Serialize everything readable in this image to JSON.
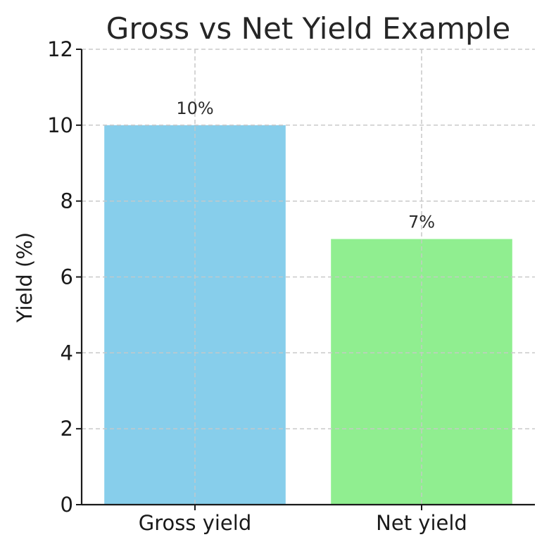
{
  "chart_data": {
    "type": "bar",
    "title": "Gross vs Net Yield Example",
    "xlabel": "",
    "ylabel": "Yield (%)",
    "categories": [
      "Gross yield",
      "Net yield"
    ],
    "values": [
      10,
      7
    ],
    "data_labels": [
      "10%",
      "7%"
    ],
    "colors": [
      "#87CEEB",
      "#90EE90"
    ],
    "ylim": [
      0,
      12
    ],
    "yticks": [
      0,
      2,
      4,
      6,
      8,
      10,
      12
    ],
    "grid": true,
    "legend": "none"
  }
}
